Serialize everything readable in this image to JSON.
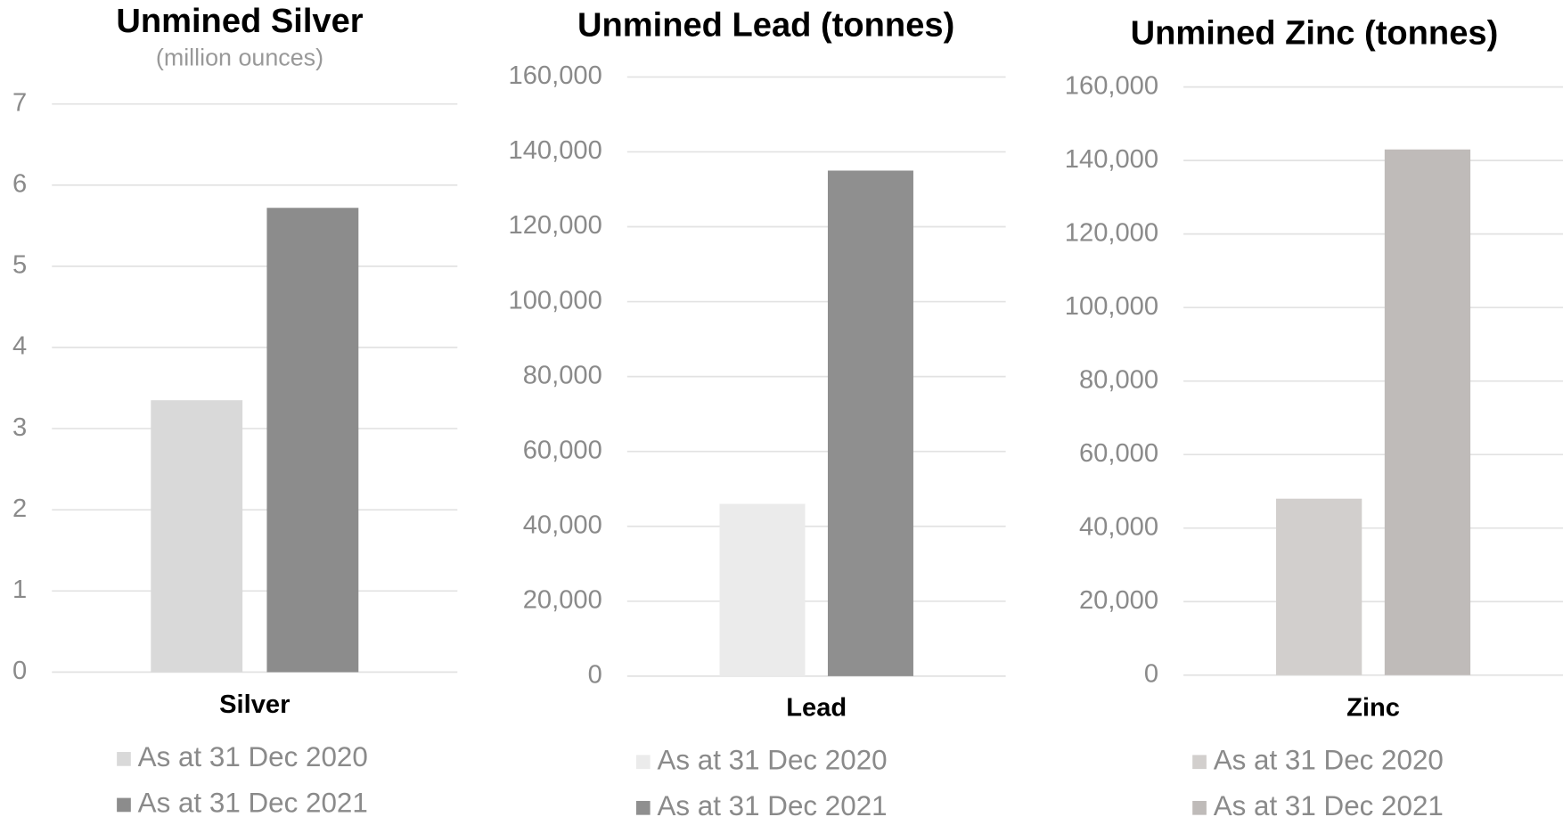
{
  "chart_data": [
    {
      "type": "bar",
      "title": "Unmined Silver",
      "subtitle": "(million ounces)",
      "categories": [
        "Silver"
      ],
      "series": [
        {
          "name": "As at 31 Dec 2020",
          "color": "#d9d9d9",
          "values": [
            3.35
          ]
        },
        {
          "name": "As at 31 Dec 2021",
          "color": "#8c8c8c",
          "values": [
            5.72
          ]
        }
      ],
      "ylim": [
        0,
        7
      ],
      "yticks": [
        0,
        1,
        2,
        3,
        4,
        5,
        6,
        7
      ],
      "grid": true
    },
    {
      "type": "bar",
      "title": "Unmined Lead (tonnes)",
      "categories": [
        "Lead"
      ],
      "series": [
        {
          "name": "As at 31 Dec 2020",
          "color": "#ebebeb",
          "values": [
            46000
          ]
        },
        {
          "name": "As at 31 Dec 2021",
          "color": "#8f8f8f",
          "values": [
            135000
          ]
        }
      ],
      "ylim": [
        0,
        160000
      ],
      "yticks": [
        0,
        {
          "value": 20000,
          "label": "20,000"
        },
        {
          "value": 40000,
          "label": "40,000"
        },
        {
          "value": 60000,
          "label": "60,000"
        },
        {
          "value": 80000,
          "label": "80,000"
        },
        {
          "value": 100000,
          "label": "100,000"
        },
        {
          "value": 120000,
          "label": "120,000"
        },
        {
          "value": 140000,
          "label": "140,000"
        },
        {
          "value": 160000,
          "label": "160,000"
        }
      ],
      "grid": true
    },
    {
      "type": "bar",
      "title": "Unmined Zinc (tonnes)",
      "categories": [
        "Zinc"
      ],
      "series": [
        {
          "name": "As at 31 Dec 2020",
          "color": "#d2cfcd",
          "values": [
            48000
          ]
        },
        {
          "name": "As at 31 Dec 2021",
          "color": "#bfbbb9",
          "values": [
            143000
          ]
        }
      ],
      "ylim": [
        0,
        160000
      ],
      "yticks": [
        0,
        {
          "value": 20000,
          "label": "20,000"
        },
        {
          "value": 40000,
          "label": "40,000"
        },
        {
          "value": 60000,
          "label": "60,000"
        },
        {
          "value": 80000,
          "label": "80,000"
        },
        {
          "value": 100000,
          "label": "100,000"
        },
        {
          "value": 120000,
          "label": "120,000"
        },
        {
          "value": 140000,
          "label": "140,000"
        },
        {
          "value": 160000,
          "label": "160,000"
        }
      ],
      "grid": true
    }
  ]
}
